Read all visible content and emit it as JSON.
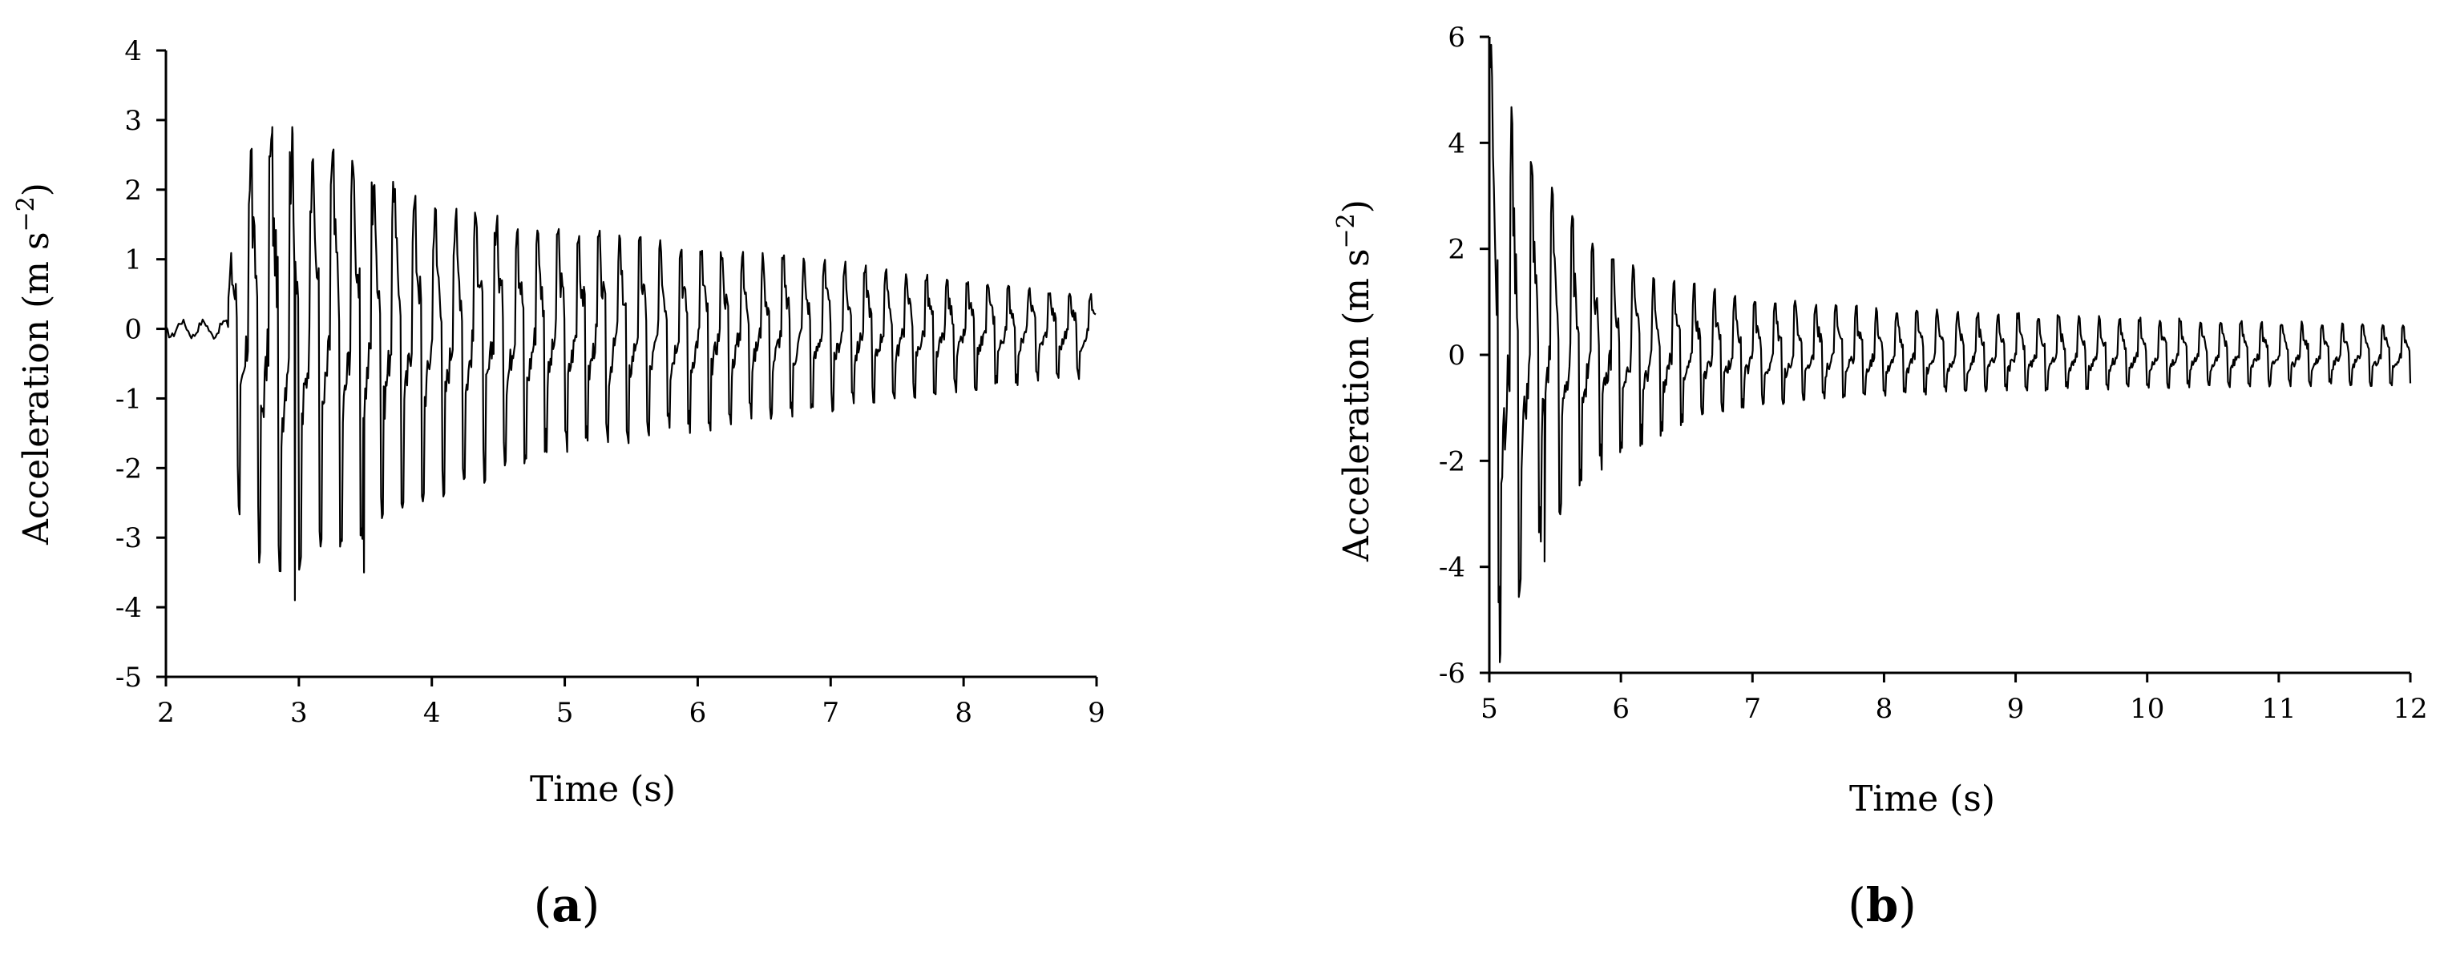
{
  "chart_data": [
    {
      "type": "line",
      "panel_label_open": "(",
      "panel_label_letter": "a",
      "panel_label_close": ")",
      "xlabel": "Time (s)",
      "ylabel_main": "Acceleration (m s",
      "ylabel_sup": "−2",
      "ylabel_close": ")",
      "xlim": [
        2,
        9
      ],
      "ylim": [
        -5,
        4
      ],
      "xticks": [
        "2",
        "3",
        "4",
        "5",
        "6",
        "7",
        "8",
        "9"
      ],
      "yticks": [
        "4",
        "3",
        "2",
        "1",
        "0",
        "-1",
        "-2",
        "-3",
        "-4",
        "-5"
      ],
      "grid": false,
      "series": [
        {
          "pre_onset": {
            "start": 2.0,
            "end": 2.47,
            "amplitude": 0.15
          },
          "onset_time": 2.47,
          "period": 0.154,
          "envelope_max": [
            [
              2.47,
              0.6
            ],
            [
              2.55,
              2.6
            ],
            [
              2.8,
              2.9
            ],
            [
              3.2,
              2.7
            ],
            [
              4.0,
              1.8
            ],
            [
              5.0,
              1.5
            ],
            [
              6.0,
              1.2
            ],
            [
              7.0,
              1.0
            ],
            [
              8.0,
              0.7
            ],
            [
              9.0,
              0.5
            ]
          ],
          "envelope_min": [
            [
              2.47,
              -0.6
            ],
            [
              2.55,
              -2.7
            ],
            [
              2.75,
              -3.6
            ],
            [
              3.0,
              -3.5
            ],
            [
              3.5,
              -3.0
            ],
            [
              4.0,
              -2.5
            ],
            [
              5.0,
              -1.8
            ],
            [
              6.0,
              -1.5
            ],
            [
              7.0,
              -1.2
            ],
            [
              8.0,
              -0.9
            ],
            [
              9.0,
              -0.7
            ]
          ],
          "notable_extrema": [
            [
              2.97,
              -3.9
            ],
            [
              3.49,
              -3.5
            ],
            [
              2.8,
              2.9
            ],
            [
              2.95,
              2.9
            ]
          ]
        }
      ]
    },
    {
      "type": "line",
      "panel_label_open": "(",
      "panel_label_letter": "b",
      "panel_label_close": ")",
      "xlabel": "Time (s)",
      "ylabel_main": "Acceleration (m s",
      "ylabel_sup": "−2",
      "ylabel_close": ")",
      "xlim": [
        5,
        12
      ],
      "ylim": [
        -6,
        6
      ],
      "xticks": [
        "5",
        "6",
        "7",
        "8",
        "9",
        "10",
        "11",
        "12"
      ],
      "yticks": [
        "6",
        "4",
        "2",
        "0",
        "-2",
        "-4",
        "-6"
      ],
      "grid": false,
      "series": [
        {
          "onset_time": 5.0,
          "period": 0.154,
          "envelope_max": [
            [
              5.0,
              6.0
            ],
            [
              5.1,
              5.3
            ],
            [
              5.3,
              3.8
            ],
            [
              5.6,
              2.8
            ],
            [
              6.0,
              1.8
            ],
            [
              6.5,
              1.4
            ],
            [
              7.0,
              1.1
            ],
            [
              8.0,
              0.9
            ],
            [
              9.0,
              0.8
            ],
            [
              10.0,
              0.7
            ],
            [
              11.0,
              0.65
            ],
            [
              12.0,
              0.6
            ]
          ],
          "envelope_min": [
            [
              5.0,
              -5.3
            ],
            [
              5.1,
              -5.8
            ],
            [
              5.3,
              -4.0
            ],
            [
              5.6,
              -2.8
            ],
            [
              6.0,
              -1.9
            ],
            [
              6.5,
              -1.3
            ],
            [
              7.0,
              -1.0
            ],
            [
              8.0,
              -0.8
            ],
            [
              9.0,
              -0.7
            ],
            [
              10.0,
              -0.65
            ],
            [
              11.0,
              -0.6
            ],
            [
              12.0,
              -0.6
            ]
          ],
          "notable_extrema": [
            [
              5.42,
              -3.9
            ],
            [
              5.0,
              6.0
            ],
            [
              5.08,
              -5.8
            ]
          ]
        }
      ]
    }
  ]
}
